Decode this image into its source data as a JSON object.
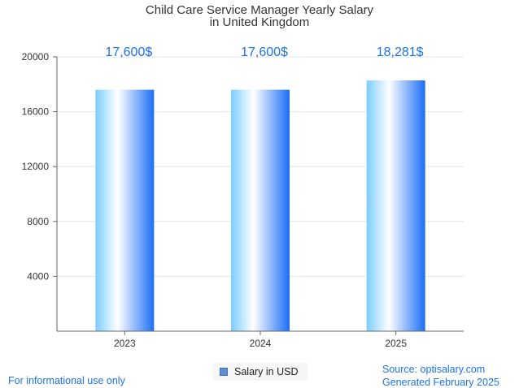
{
  "chart_data": {
    "type": "bar",
    "title_lines": [
      "Child Care Service Manager Yearly Salary",
      "in United Kingdom"
    ],
    "categories": [
      "2023",
      "2024",
      "2025"
    ],
    "series": [
      {
        "name": "Salary in USD",
        "values": [
          17600,
          17600,
          18281
        ]
      }
    ],
    "data_labels": [
      "17,600$",
      "17,600$",
      "18,281$"
    ],
    "y_ticks": [
      4000,
      8000,
      12000,
      16000,
      20000
    ],
    "ylim": [
      0,
      20000
    ],
    "grid": true,
    "legend_position": "bottom-center"
  },
  "colors": {
    "bar_light": "#e8f7ff",
    "bar_mid": "#7ccdff",
    "bar_dark": "#1b6ef5",
    "label_blue": "#1e73e8",
    "grid": "#e6e6e6",
    "axis": "#666666"
  },
  "footer": {
    "disclaimer": "For informational use only",
    "source": "Source: optisalary.com",
    "generated": "Generated February 2025"
  }
}
